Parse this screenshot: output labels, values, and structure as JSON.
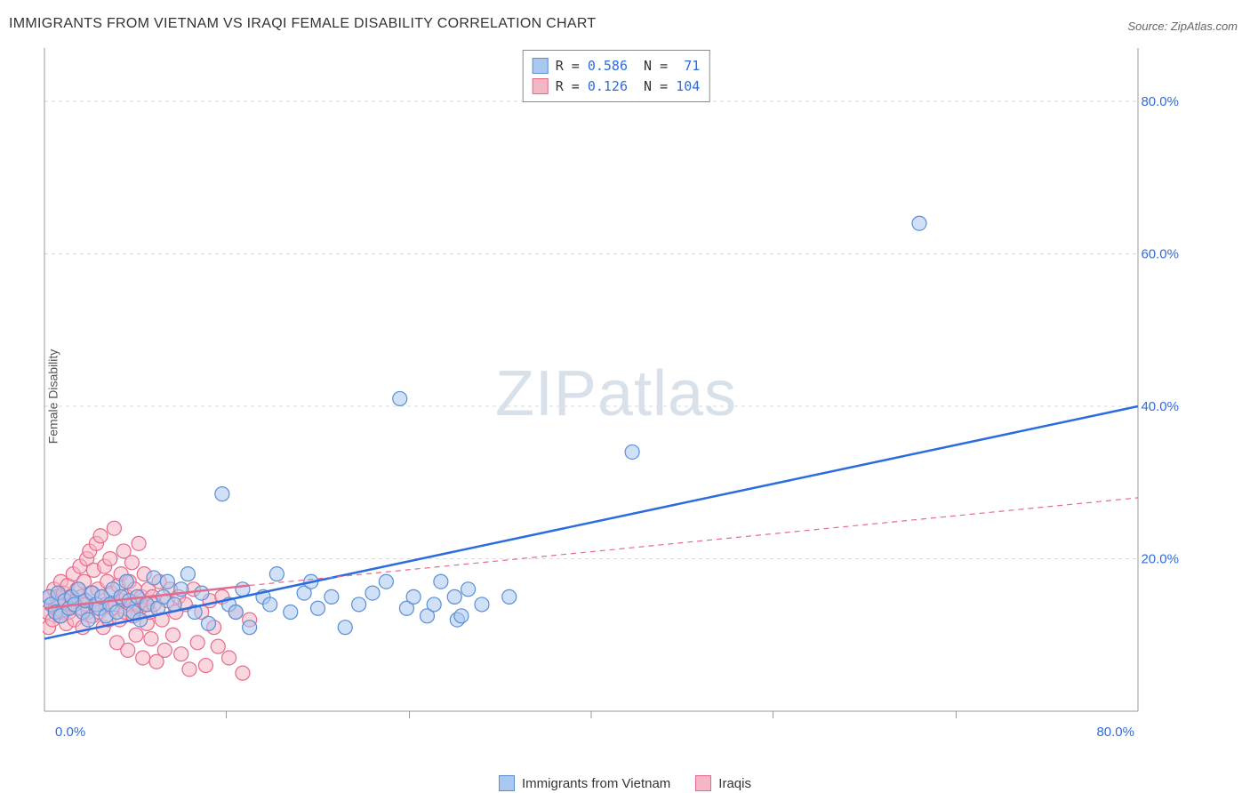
{
  "title": "IMMIGRANTS FROM VIETNAM VS IRAQI FEMALE DISABILITY CORRELATION CHART",
  "source": "Source: ZipAtlas.com",
  "ylabel": "Female Disability",
  "watermark_zip": "ZIP",
  "watermark_atlas": "atlas",
  "chart": {
    "type": "scatter",
    "xlim": [
      0,
      80
    ],
    "ylim": [
      0,
      87
    ],
    "ytick_values": [
      20,
      40,
      60,
      80
    ],
    "ytick_labels": [
      "20.0%",
      "40.0%",
      "60.0%",
      "80.0%"
    ],
    "xtick_values": [
      0,
      80
    ],
    "xtick_labels": [
      "0.0%",
      "80.0%"
    ],
    "xtick_minor": [
      13.3,
      26.7,
      40,
      53.3,
      66.7
    ],
    "grid_color": "#d9d9d9",
    "axis_color": "#999999",
    "background_color": "#ffffff",
    "marker_radius": 8,
    "marker_stroke_width": 1.2,
    "line_width_solid": 2.5,
    "line_width_dash": 1.2
  },
  "series": [
    {
      "name": "Immigrants from Vietnam",
      "fill": "#a9c7ef",
      "stroke": "#5a8fd6",
      "line_color": "#2d6cdf",
      "R": "0.586",
      "N": "71",
      "trend_solid": {
        "x1": 0,
        "y1": 9.5,
        "x2": 80,
        "y2": 40
      },
      "trend_dash": {
        "x1": 0,
        "y1": 9.5,
        "x2": 80,
        "y2": 40
      },
      "points": [
        [
          0.3,
          15
        ],
        [
          0.5,
          14
        ],
        [
          0.8,
          13
        ],
        [
          1,
          15.5
        ],
        [
          1.2,
          12.5
        ],
        [
          1.5,
          14.5
        ],
        [
          1.8,
          13.5
        ],
        [
          2,
          15
        ],
        [
          2.2,
          14
        ],
        [
          2.5,
          16
        ],
        [
          2.8,
          13
        ],
        [
          3,
          14.5
        ],
        [
          3.2,
          12
        ],
        [
          3.5,
          15.5
        ],
        [
          3.8,
          14
        ],
        [
          4,
          13.5
        ],
        [
          4.2,
          15
        ],
        [
          4.5,
          12.5
        ],
        [
          4.8,
          14
        ],
        [
          5,
          16
        ],
        [
          5.3,
          13
        ],
        [
          5.6,
          15
        ],
        [
          6,
          17
        ],
        [
          6.2,
          14.5
        ],
        [
          6.5,
          13
        ],
        [
          6.8,
          15
        ],
        [
          7,
          12
        ],
        [
          7.5,
          14
        ],
        [
          8,
          17.5
        ],
        [
          8.3,
          13.5
        ],
        [
          8.7,
          15
        ],
        [
          9,
          17
        ],
        [
          9.5,
          14
        ],
        [
          10,
          16
        ],
        [
          10.5,
          18
        ],
        [
          11,
          13
        ],
        [
          11.5,
          15.5
        ],
        [
          12,
          11.5
        ],
        [
          13,
          28.5
        ],
        [
          13.5,
          14
        ],
        [
          14,
          13
        ],
        [
          14.5,
          16
        ],
        [
          15,
          11
        ],
        [
          16,
          15
        ],
        [
          16.5,
          14
        ],
        [
          17,
          18
        ],
        [
          18,
          13
        ],
        [
          19,
          15.5
        ],
        [
          19.5,
          17
        ],
        [
          20,
          13.5
        ],
        [
          21,
          15
        ],
        [
          22,
          11
        ],
        [
          23,
          14
        ],
        [
          24,
          15.5
        ],
        [
          25,
          17
        ],
        [
          26,
          41
        ],
        [
          26.5,
          13.5
        ],
        [
          27,
          15
        ],
        [
          28,
          12.5
        ],
        [
          28.5,
          14
        ],
        [
          29,
          17
        ],
        [
          30,
          15
        ],
        [
          30.2,
          12
        ],
        [
          30.5,
          12.5
        ],
        [
          31,
          16
        ],
        [
          32,
          14
        ],
        [
          34,
          15
        ],
        [
          43,
          34
        ],
        [
          64,
          64
        ]
      ]
    },
    {
      "name": "Iraqis",
      "fill": "#f5b6c5",
      "stroke": "#e66a8a",
      "line_color": "#e66a8a",
      "R": "0.126",
      "N": "104",
      "trend_solid": {
        "x1": 0,
        "y1": 13.5,
        "x2": 15,
        "y2": 16.5
      },
      "trend_dash": {
        "x1": 15,
        "y1": 16.5,
        "x2": 80,
        "y2": 28
      },
      "points": [
        [
          0.2,
          13
        ],
        [
          0.3,
          11
        ],
        [
          0.4,
          15
        ],
        [
          0.5,
          14
        ],
        [
          0.6,
          12
        ],
        [
          0.7,
          16
        ],
        [
          0.8,
          13.5
        ],
        [
          0.9,
          15
        ],
        [
          1,
          14
        ],
        [
          1.1,
          12.5
        ],
        [
          1.2,
          17
        ],
        [
          1.3,
          13
        ],
        [
          1.4,
          15.5
        ],
        [
          1.5,
          14.5
        ],
        [
          1.6,
          11.5
        ],
        [
          1.7,
          16.5
        ],
        [
          1.8,
          13
        ],
        [
          1.9,
          15
        ],
        [
          2,
          14
        ],
        [
          2.1,
          18
        ],
        [
          2.2,
          12
        ],
        [
          2.3,
          14.5
        ],
        [
          2.4,
          16
        ],
        [
          2.5,
          13.5
        ],
        [
          2.6,
          19
        ],
        [
          2.7,
          15
        ],
        [
          2.8,
          11
        ],
        [
          2.9,
          17
        ],
        [
          3,
          14
        ],
        [
          3.1,
          20
        ],
        [
          3.2,
          13
        ],
        [
          3.3,
          21
        ],
        [
          3.4,
          15.5
        ],
        [
          3.5,
          12.5
        ],
        [
          3.6,
          18.5
        ],
        [
          3.7,
          14
        ],
        [
          3.8,
          22
        ],
        [
          3.9,
          16
        ],
        [
          4,
          13
        ],
        [
          4.1,
          23
        ],
        [
          4.2,
          15
        ],
        [
          4.3,
          11
        ],
        [
          4.4,
          19
        ],
        [
          4.5,
          14
        ],
        [
          4.6,
          17
        ],
        [
          4.7,
          12
        ],
        [
          4.8,
          20
        ],
        [
          4.9,
          15.5
        ],
        [
          5,
          13.5
        ],
        [
          5.1,
          24
        ],
        [
          5.2,
          14
        ],
        [
          5.3,
          9
        ],
        [
          5.4,
          16.5
        ],
        [
          5.5,
          12
        ],
        [
          5.6,
          18
        ],
        [
          5.7,
          14.5
        ],
        [
          5.8,
          21
        ],
        [
          5.9,
          13
        ],
        [
          6,
          15
        ],
        [
          6.1,
          8
        ],
        [
          6.2,
          17
        ],
        [
          6.3,
          14
        ],
        [
          6.4,
          19.5
        ],
        [
          6.5,
          12.5
        ],
        [
          6.6,
          16
        ],
        [
          6.7,
          10
        ],
        [
          6.8,
          14
        ],
        [
          6.9,
          22
        ],
        [
          7,
          13.5
        ],
        [
          7.1,
          15
        ],
        [
          7.2,
          7
        ],
        [
          7.3,
          18
        ],
        [
          7.4,
          14
        ],
        [
          7.5,
          11.5
        ],
        [
          7.6,
          16
        ],
        [
          7.7,
          13
        ],
        [
          7.8,
          9.5
        ],
        [
          7.9,
          15
        ],
        [
          8,
          14
        ],
        [
          8.2,
          6.5
        ],
        [
          8.4,
          17
        ],
        [
          8.6,
          12
        ],
        [
          8.8,
          8
        ],
        [
          9,
          14.5
        ],
        [
          9.2,
          16
        ],
        [
          9.4,
          10
        ],
        [
          9.6,
          13
        ],
        [
          9.8,
          15
        ],
        [
          10,
          7.5
        ],
        [
          10.3,
          14
        ],
        [
          10.6,
          5.5
        ],
        [
          10.9,
          16
        ],
        [
          11.2,
          9
        ],
        [
          11.5,
          13
        ],
        [
          11.8,
          6
        ],
        [
          12.1,
          14.5
        ],
        [
          12.4,
          11
        ],
        [
          12.7,
          8.5
        ],
        [
          13,
          15
        ],
        [
          13.5,
          7
        ],
        [
          14,
          13
        ],
        [
          14.5,
          5
        ],
        [
          15,
          12
        ]
      ]
    }
  ],
  "xlegend": [
    {
      "label": "Immigrants from Vietnam",
      "fill": "#a9c7ef",
      "stroke": "#5a8fd6"
    },
    {
      "label": "Iraqis",
      "fill": "#f5b6c5",
      "stroke": "#e66a8a"
    }
  ]
}
